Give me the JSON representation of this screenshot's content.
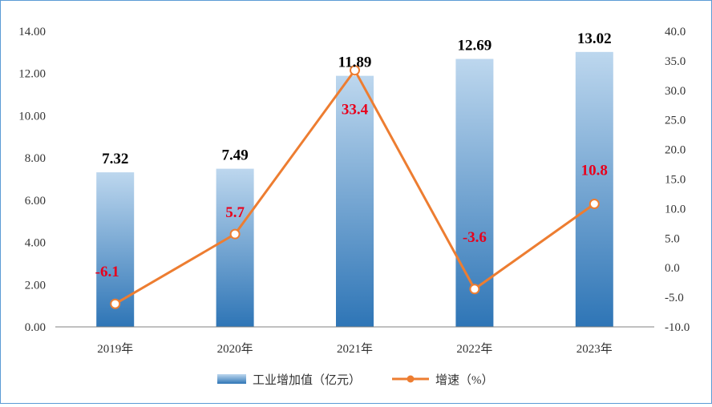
{
  "chart_data": {
    "type": "bar",
    "categories": [
      "2019年",
      "2020年",
      "2021年",
      "2022年",
      "2023年"
    ],
    "series": [
      {
        "name": "工业增加值（亿元）",
        "type": "bar",
        "axis": "left",
        "values": [
          7.32,
          7.49,
          11.89,
          12.69,
          13.02
        ],
        "labels": [
          "7.32",
          "7.49",
          "11.89",
          "12.69",
          "13.02"
        ]
      },
      {
        "name": "增速（%）",
        "type": "line",
        "axis": "right",
        "values": [
          -6.1,
          5.7,
          33.4,
          -3.6,
          10.8
        ],
        "labels": [
          "-6.1",
          "5.7",
          "33.4",
          "-3.6",
          "10.8"
        ]
      }
    ],
    "y_left": {
      "min": 0,
      "max": 14,
      "ticks": [
        "0.00",
        "2.00",
        "4.00",
        "6.00",
        "8.00",
        "10.00",
        "12.00",
        "14.00"
      ]
    },
    "y_right": {
      "min": -10,
      "max": 40,
      "ticks": [
        "-10.0",
        "-5.0",
        "0.0",
        "5.0",
        "10.0",
        "15.0",
        "20.0",
        "25.0",
        "30.0",
        "35.0",
        "40.0"
      ]
    },
    "grid": false,
    "legend": "bottom",
    "colors": {
      "bar_top": "#bdd7ee",
      "bar_bottom": "#2e75b6",
      "line": "#ed7d31",
      "line_label": "#e8001c"
    }
  }
}
